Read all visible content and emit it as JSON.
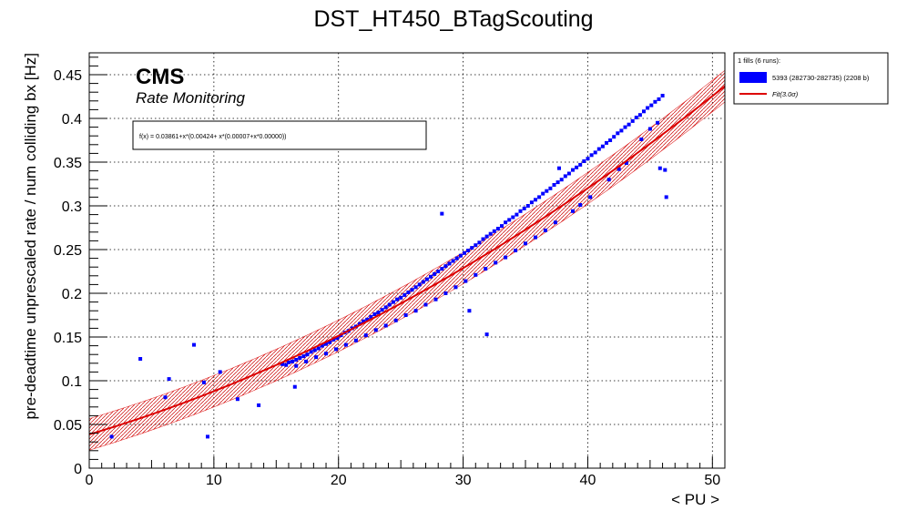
{
  "chart_data": {
    "type": "scatter",
    "title": "DST_HT450_BTagScouting",
    "xlabel": "< PU >",
    "ylabel": "pre-deadtime unprescaled rate / num colliding bx [Hz]",
    "xlim": [
      0,
      51
    ],
    "ylim": [
      0,
      0.475
    ],
    "x_ticks": [
      0,
      10,
      20,
      30,
      40,
      50
    ],
    "y_ticks": [
      0,
      0.05,
      0.1,
      0.15,
      0.2,
      0.25,
      0.3,
      0.35,
      0.4,
      0.45
    ],
    "grid": true,
    "legend_position": "top-right, outside plot",
    "cms_label": "CMS",
    "cms_sublabel": "Rate Monitoring",
    "fit_formula": "f(x) = 0.03861+x*(0.00424+ x*(0.00007+x*0.00000))",
    "fit": {
      "coefficients": [
        0.03861,
        0.00424,
        7e-05,
        0.0
      ],
      "band_halfwidth": 0.018,
      "x_range": [
        0,
        51
      ],
      "color": "#dd0000"
    },
    "legend": {
      "header": "1 fills (6 runs):",
      "entries": [
        {
          "label": "5393 (282730-282735) (2208 b)",
          "color": "#0000ff"
        },
        {
          "label": "Fit(3.0σ)",
          "color": "#dd0000"
        }
      ]
    },
    "series": [
      {
        "name": "5393 (282730-282735) (2208 b)",
        "color": "#0000ff",
        "points": [
          [
            15.5,
            0.119
          ],
          [
            15.8,
            0.118
          ],
          [
            16.0,
            0.121
          ],
          [
            16.3,
            0.122
          ],
          [
            16.6,
            0.124
          ],
          [
            16.9,
            0.126
          ],
          [
            17.2,
            0.128
          ],
          [
            17.5,
            0.13
          ],
          [
            17.8,
            0.133
          ],
          [
            18.1,
            0.135
          ],
          [
            18.4,
            0.137
          ],
          [
            18.7,
            0.14
          ],
          [
            19.0,
            0.142
          ],
          [
            19.3,
            0.144
          ],
          [
            19.6,
            0.147
          ],
          [
            19.9,
            0.149
          ],
          [
            20.2,
            0.152
          ],
          [
            20.5,
            0.155
          ],
          [
            20.8,
            0.157
          ],
          [
            21.1,
            0.16
          ],
          [
            21.4,
            0.162
          ],
          [
            21.7,
            0.165
          ],
          [
            22.0,
            0.168
          ],
          [
            22.3,
            0.17
          ],
          [
            22.6,
            0.173
          ],
          [
            22.9,
            0.176
          ],
          [
            23.2,
            0.178
          ],
          [
            23.5,
            0.181
          ],
          [
            23.8,
            0.184
          ],
          [
            24.1,
            0.187
          ],
          [
            24.4,
            0.19
          ],
          [
            24.7,
            0.193
          ],
          [
            25.0,
            0.195
          ],
          [
            25.3,
            0.198
          ],
          [
            25.6,
            0.201
          ],
          [
            25.9,
            0.204
          ],
          [
            26.2,
            0.207
          ],
          [
            26.5,
            0.21
          ],
          [
            26.8,
            0.213
          ],
          [
            27.1,
            0.216
          ],
          [
            27.4,
            0.219
          ],
          [
            27.7,
            0.222
          ],
          [
            28.0,
            0.225
          ],
          [
            28.3,
            0.228
          ],
          [
            28.6,
            0.231
          ],
          [
            28.9,
            0.234
          ],
          [
            29.2,
            0.237
          ],
          [
            29.5,
            0.24
          ],
          [
            29.8,
            0.243
          ],
          [
            30.1,
            0.246
          ],
          [
            30.4,
            0.249
          ],
          [
            30.7,
            0.252
          ],
          [
            31.0,
            0.255
          ],
          [
            31.3,
            0.258
          ],
          [
            31.6,
            0.262
          ],
          [
            31.9,
            0.265
          ],
          [
            32.2,
            0.268
          ],
          [
            32.5,
            0.271
          ],
          [
            32.8,
            0.274
          ],
          [
            33.1,
            0.277
          ],
          [
            33.4,
            0.281
          ],
          [
            33.7,
            0.284
          ],
          [
            34.0,
            0.287
          ],
          [
            34.3,
            0.29
          ],
          [
            34.6,
            0.294
          ],
          [
            34.9,
            0.297
          ],
          [
            35.2,
            0.3
          ],
          [
            35.5,
            0.304
          ],
          [
            35.8,
            0.307
          ],
          [
            36.1,
            0.31
          ],
          [
            36.4,
            0.314
          ],
          [
            36.7,
            0.317
          ],
          [
            37.0,
            0.32
          ],
          [
            37.3,
            0.324
          ],
          [
            37.6,
            0.327
          ],
          [
            37.9,
            0.33
          ],
          [
            38.2,
            0.334
          ],
          [
            38.5,
            0.337
          ],
          [
            38.8,
            0.341
          ],
          [
            39.1,
            0.344
          ],
          [
            39.4,
            0.347
          ],
          [
            39.7,
            0.351
          ],
          [
            40.0,
            0.354
          ],
          [
            40.3,
            0.358
          ],
          [
            40.6,
            0.361
          ],
          [
            40.9,
            0.365
          ],
          [
            41.2,
            0.368
          ],
          [
            41.5,
            0.372
          ],
          [
            41.8,
            0.375
          ],
          [
            42.1,
            0.379
          ],
          [
            42.4,
            0.383
          ],
          [
            42.7,
            0.386
          ],
          [
            43.0,
            0.39
          ],
          [
            43.3,
            0.393
          ],
          [
            43.6,
            0.397
          ],
          [
            43.9,
            0.401
          ],
          [
            44.2,
            0.404
          ],
          [
            44.5,
            0.408
          ],
          [
            44.8,
            0.412
          ],
          [
            45.1,
            0.415
          ],
          [
            45.4,
            0.419
          ],
          [
            45.7,
            0.422
          ],
          [
            46.0,
            0.426
          ],
          [
            1.8,
            0.036
          ],
          [
            4.1,
            0.125
          ],
          [
            6.1,
            0.081
          ],
          [
            6.4,
            0.102
          ],
          [
            8.4,
            0.141
          ],
          [
            9.2,
            0.098
          ],
          [
            9.5,
            0.036
          ],
          [
            10.5,
            0.11
          ],
          [
            11.9,
            0.079
          ],
          [
            13.6,
            0.072
          ],
          [
            16.5,
            0.093
          ],
          [
            28.3,
            0.291
          ],
          [
            30.5,
            0.18
          ],
          [
            31.9,
            0.153
          ],
          [
            37.7,
            0.343
          ],
          [
            45.8,
            0.343
          ],
          [
            46.2,
            0.341
          ],
          [
            46.3,
            0.31
          ],
          [
            45.6,
            0.395
          ],
          [
            45.0,
            0.388
          ],
          [
            44.3,
            0.376
          ],
          [
            43.1,
            0.349
          ],
          [
            42.5,
            0.342
          ],
          [
            41.7,
            0.33
          ],
          [
            40.2,
            0.31
          ],
          [
            39.4,
            0.301
          ],
          [
            38.8,
            0.294
          ],
          [
            37.4,
            0.281
          ],
          [
            36.6,
            0.272
          ],
          [
            35.8,
            0.264
          ],
          [
            35.0,
            0.257
          ],
          [
            34.2,
            0.249
          ],
          [
            33.4,
            0.241
          ],
          [
            32.6,
            0.235
          ],
          [
            31.8,
            0.228
          ],
          [
            31.0,
            0.221
          ],
          [
            30.2,
            0.214
          ],
          [
            29.4,
            0.207
          ],
          [
            28.6,
            0.2
          ],
          [
            27.8,
            0.193
          ],
          [
            27.0,
            0.187
          ],
          [
            26.2,
            0.18
          ],
          [
            25.4,
            0.175
          ],
          [
            24.6,
            0.169
          ],
          [
            23.8,
            0.163
          ],
          [
            23.0,
            0.158
          ],
          [
            22.2,
            0.152
          ],
          [
            21.4,
            0.146
          ],
          [
            20.6,
            0.141
          ],
          [
            19.8,
            0.136
          ],
          [
            19.0,
            0.131
          ],
          [
            18.2,
            0.127
          ],
          [
            17.4,
            0.122
          ],
          [
            16.6,
            0.117
          ]
        ]
      }
    ]
  }
}
